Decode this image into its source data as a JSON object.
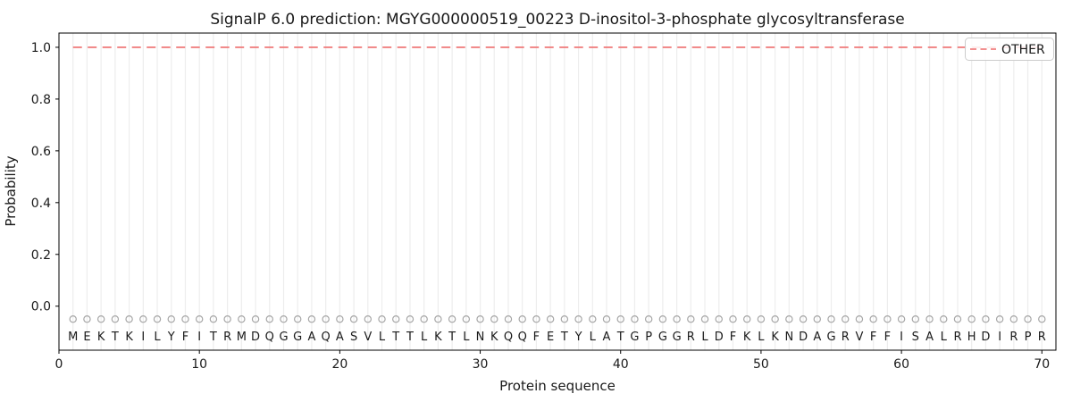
{
  "figure": {
    "title": "SignalP 6.0 prediction: MGYG000000519_00223 D-inositol-3-phosphate glycosyltransferase",
    "xlabel": "Protein sequence",
    "ylabel": "Probability",
    "legend": {
      "position": "upper right",
      "items": [
        {
          "label": "OTHER",
          "color": "#f08080",
          "line_style": "dashed"
        }
      ]
    }
  },
  "colors": {
    "background": "#ffffff",
    "line_other": "#f08080",
    "grid": "#ededed",
    "marker": "#a6a6a6",
    "spine": "#000000",
    "text": "#1a1a1a",
    "legend_border": "#cccccc"
  },
  "chart_data": {
    "type": "line",
    "title": "SignalP 6.0 prediction: MGYG000000519_00223 D-inositol-3-phosphate glycosyltransferase",
    "xlabel": "Protein sequence",
    "ylabel": "Probability",
    "xlim": [
      0,
      71
    ],
    "ylim": [
      -0.17,
      1.055
    ],
    "x_ticks": [
      0,
      10,
      20,
      30,
      40,
      50,
      60,
      70
    ],
    "x_tick_labels": [
      "0",
      "10",
      "20",
      "30",
      "40",
      "50",
      "60",
      "70"
    ],
    "y_ticks": [
      0.0,
      0.2,
      0.4,
      0.6,
      0.8,
      1.0
    ],
    "y_tick_labels": [
      "0.0",
      "0.2",
      "0.4",
      "0.6",
      "0.8",
      "1.0"
    ],
    "grid": "vertical gridline at every residue position",
    "legend_position": "upper right",
    "sequence": "MEKTKILYFITRMDQGGAQASVLTTLKTLNKQQFETYLATGPGGRLDFKLKNDAGRVFFISALRHDIRPR",
    "marker_row": {
      "y": -0.05,
      "shape": "open-circle"
    },
    "letter_row_y": -0.115,
    "series": [
      {
        "name": "OTHER",
        "color": "#f08080",
        "line_style": "dashed",
        "x": [
          1,
          2,
          3,
          4,
          5,
          6,
          7,
          8,
          9,
          10,
          11,
          12,
          13,
          14,
          15,
          16,
          17,
          18,
          19,
          20,
          21,
          22,
          23,
          24,
          25,
          26,
          27,
          28,
          29,
          30,
          31,
          32,
          33,
          34,
          35,
          36,
          37,
          38,
          39,
          40,
          41,
          42,
          43,
          44,
          45,
          46,
          47,
          48,
          49,
          50,
          51,
          52,
          53,
          54,
          55,
          56,
          57,
          58,
          59,
          60,
          61,
          62,
          63,
          64,
          65,
          66,
          67,
          68,
          69,
          70
        ],
        "values": [
          1.0,
          1.0,
          1.0,
          1.0,
          1.0,
          1.0,
          1.0,
          1.0,
          1.0,
          1.0,
          1.0,
          1.0,
          1.0,
          1.0,
          1.0,
          1.0,
          1.0,
          1.0,
          1.0,
          1.0,
          1.0,
          1.0,
          1.0,
          1.0,
          1.0,
          1.0,
          1.0,
          1.0,
          1.0,
          1.0,
          1.0,
          1.0,
          1.0,
          1.0,
          1.0,
          1.0,
          1.0,
          1.0,
          1.0,
          1.0,
          1.0,
          1.0,
          1.0,
          1.0,
          1.0,
          1.0,
          1.0,
          1.0,
          1.0,
          1.0,
          1.0,
          1.0,
          1.0,
          1.0,
          1.0,
          1.0,
          1.0,
          1.0,
          1.0,
          1.0,
          1.0,
          1.0,
          1.0,
          1.0,
          1.0,
          1.0,
          1.0,
          1.0,
          1.0,
          1.0
        ]
      }
    ]
  }
}
